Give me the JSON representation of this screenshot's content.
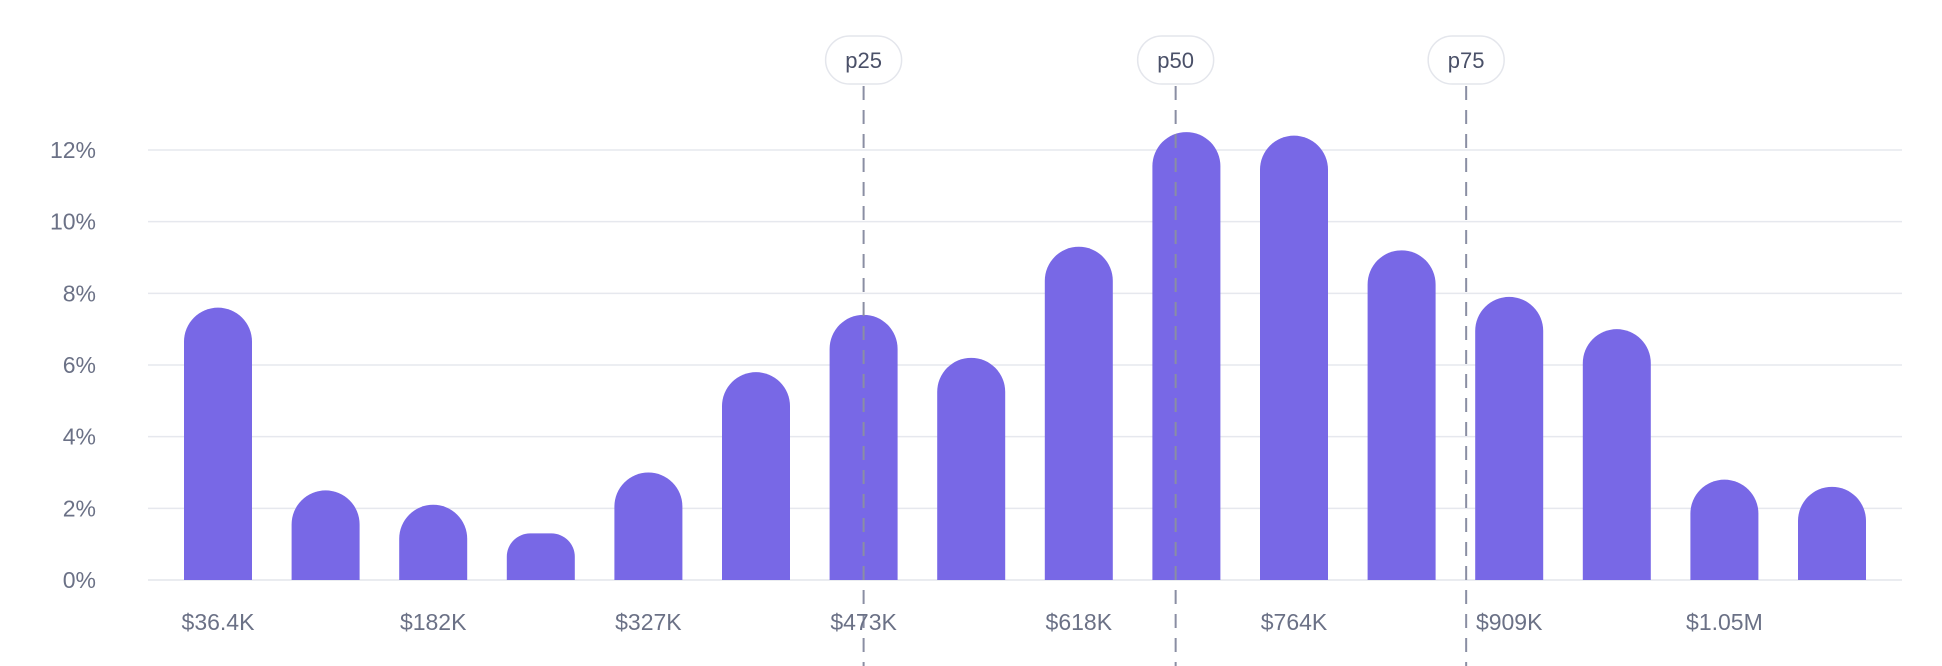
{
  "chart_data": {
    "type": "bar",
    "title": "",
    "xlabel": "",
    "ylabel": "",
    "ylim": [
      0,
      12
    ],
    "y_ticks": [
      "0%",
      "2%",
      "4%",
      "6%",
      "8%",
      "10%",
      "12%"
    ],
    "y_tick_values": [
      0,
      2,
      4,
      6,
      8,
      10,
      12
    ],
    "x_tick_labels": [
      {
        "bin": 0,
        "label": "$36.4K"
      },
      {
        "bin": 2,
        "label": "$182K"
      },
      {
        "bin": 4,
        "label": "$327K"
      },
      {
        "bin": 6,
        "label": "$473K"
      },
      {
        "bin": 8,
        "label": "$618K"
      },
      {
        "bin": 10,
        "label": "$764K"
      },
      {
        "bin": 12,
        "label": "$909K"
      },
      {
        "bin": 14,
        "label": "$1.05M"
      }
    ],
    "values": [
      7.6,
      2.5,
      2.1,
      1.3,
      3.0,
      5.8,
      7.4,
      6.2,
      9.3,
      12.5,
      12.4,
      9.2,
      7.9,
      7.0,
      2.8,
      2.6
    ],
    "percentile_markers": [
      {
        "label": "p25",
        "bin_position": 6.0
      },
      {
        "label": "p50",
        "bin_position": 8.9
      },
      {
        "label": "p75",
        "bin_position": 11.6
      }
    ],
    "grid": true,
    "legend": "none",
    "colors": {
      "bar": "#7868e6",
      "grid": "#e6e8ee",
      "tick_text": "#6b7186",
      "marker_line": "#8a8ea3",
      "marker_text": "#4a5068"
    }
  }
}
